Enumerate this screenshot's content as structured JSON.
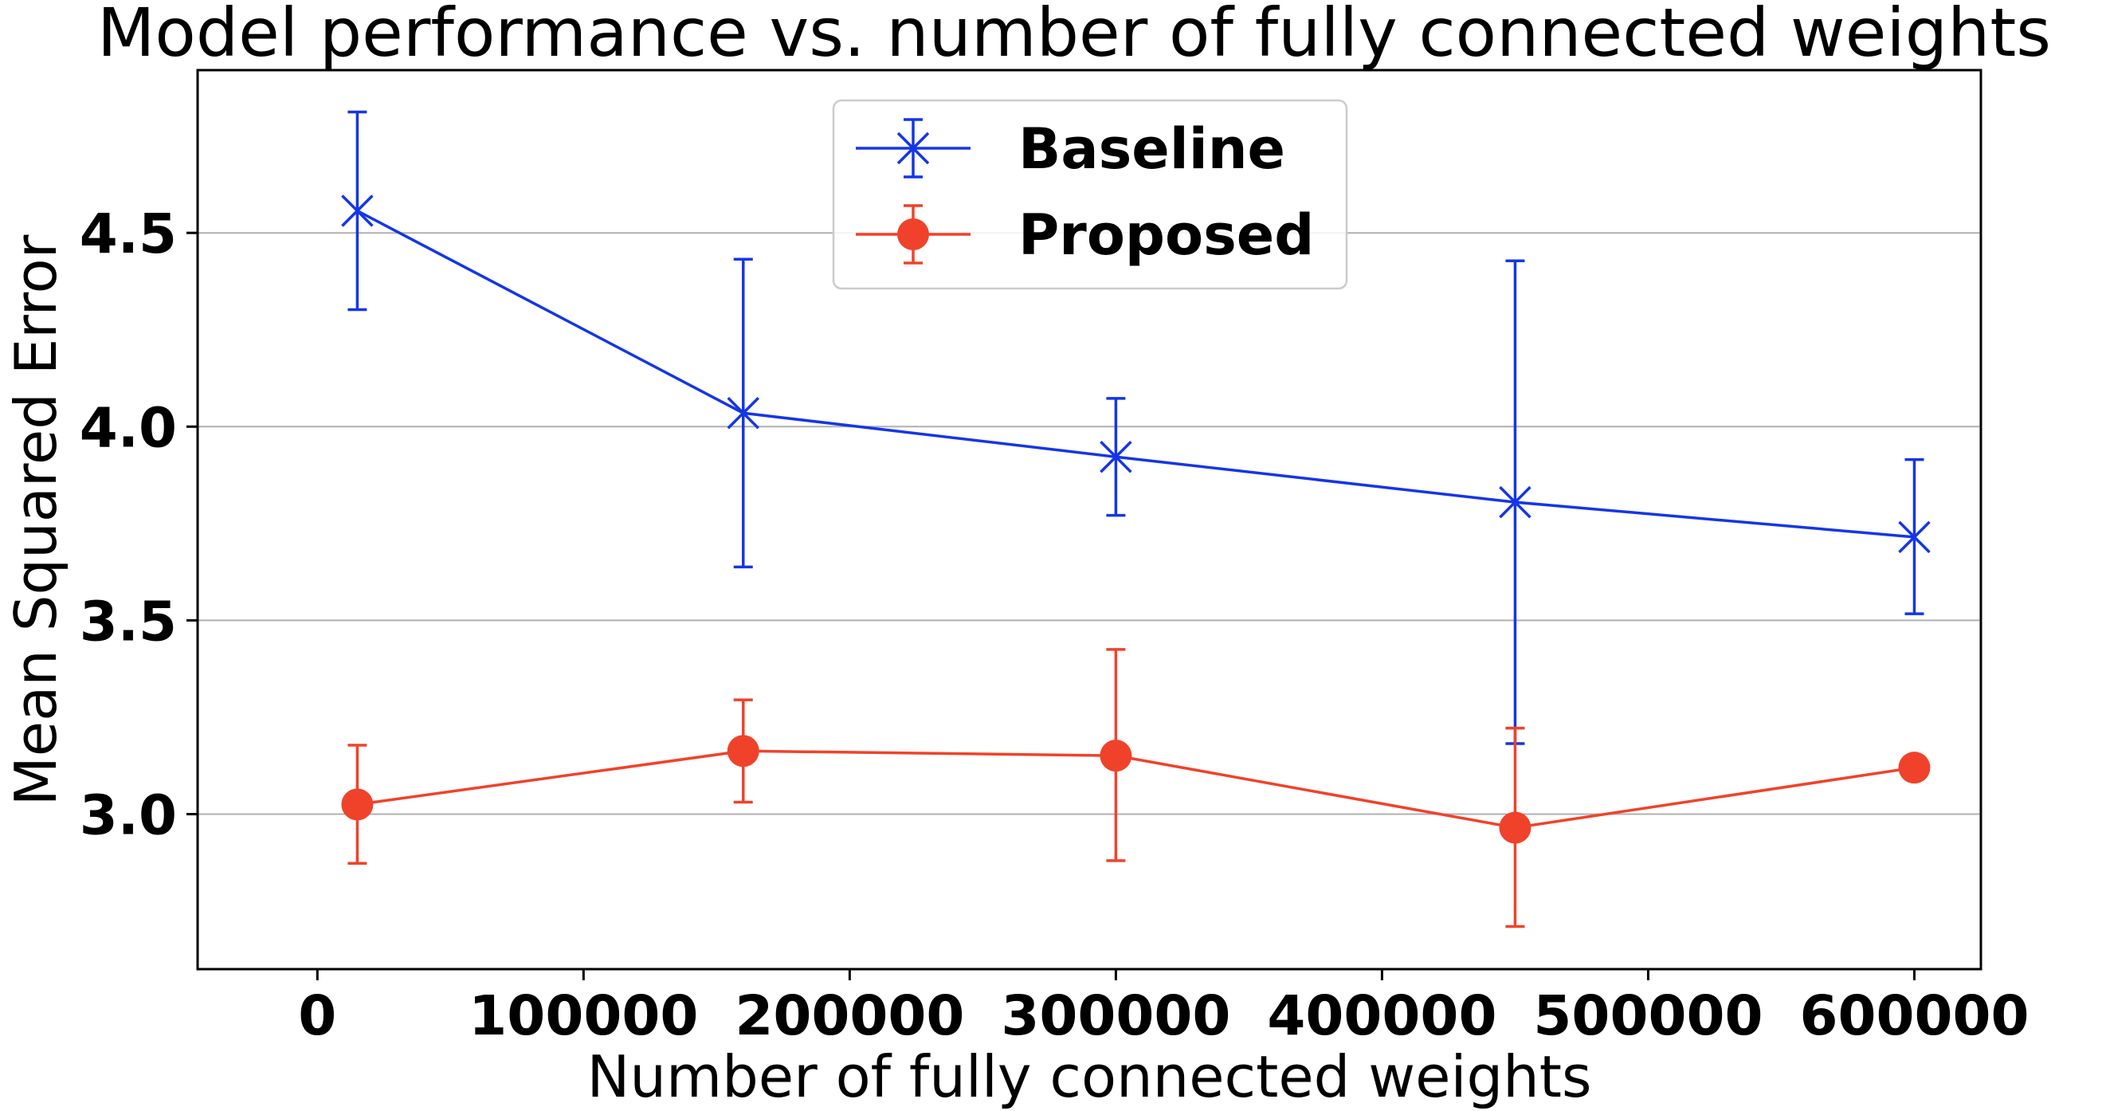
{
  "chart_data": {
    "type": "line",
    "title": "Model performance vs. number of fully connected weights",
    "xlabel": "Number of fully connected weights",
    "ylabel": "Mean Squared Error",
    "xlim": [
      -45000,
      625000
    ],
    "ylim": [
      2.6,
      4.92
    ],
    "xticks": [
      0,
      100000,
      200000,
      300000,
      400000,
      500000,
      600000
    ],
    "xtick_labels": [
      "0",
      "100000",
      "200000",
      "300000",
      "400000",
      "500000",
      "600000"
    ],
    "yticks": [
      3.0,
      3.5,
      4.0,
      4.5
    ],
    "ytick_labels": [
      "3.0",
      "3.5",
      "4.0",
      "4.5"
    ],
    "grid": {
      "y": true,
      "x": false
    },
    "legend": {
      "placement": "upper-center"
    },
    "series": [
      {
        "name": "Baseline",
        "color": "#1536e6",
        "marker": "x",
        "points": [
          {
            "x": 15000,
            "y": 4.557,
            "err_low": 4.302,
            "err_high": 4.812
          },
          {
            "x": 160000,
            "y": 4.035,
            "err_low": 3.638,
            "err_high": 4.432
          },
          {
            "x": 300000,
            "y": 3.922,
            "err_low": 3.771,
            "err_high": 4.073
          },
          {
            "x": 450000,
            "y": 3.805,
            "err_low": 3.182,
            "err_high": 4.428
          },
          {
            "x": 600000,
            "y": 3.715,
            "err_low": 3.517,
            "err_high": 3.915
          }
        ]
      },
      {
        "name": "Proposed",
        "color": "#f0422a",
        "marker": "o",
        "points": [
          {
            "x": 15000,
            "y": 3.025,
            "err_low": 2.873,
            "err_high": 3.178
          },
          {
            "x": 160000,
            "y": 3.163,
            "err_low": 3.031,
            "err_high": 3.295
          },
          {
            "x": 300000,
            "y": 3.151,
            "err_low": 2.88,
            "err_high": 3.425
          },
          {
            "x": 450000,
            "y": 2.965,
            "err_low": 2.71,
            "err_high": 3.222
          },
          {
            "x": 600000,
            "y": 3.12,
            "err_low": 3.12,
            "err_high": 3.12
          }
        ]
      }
    ]
  }
}
